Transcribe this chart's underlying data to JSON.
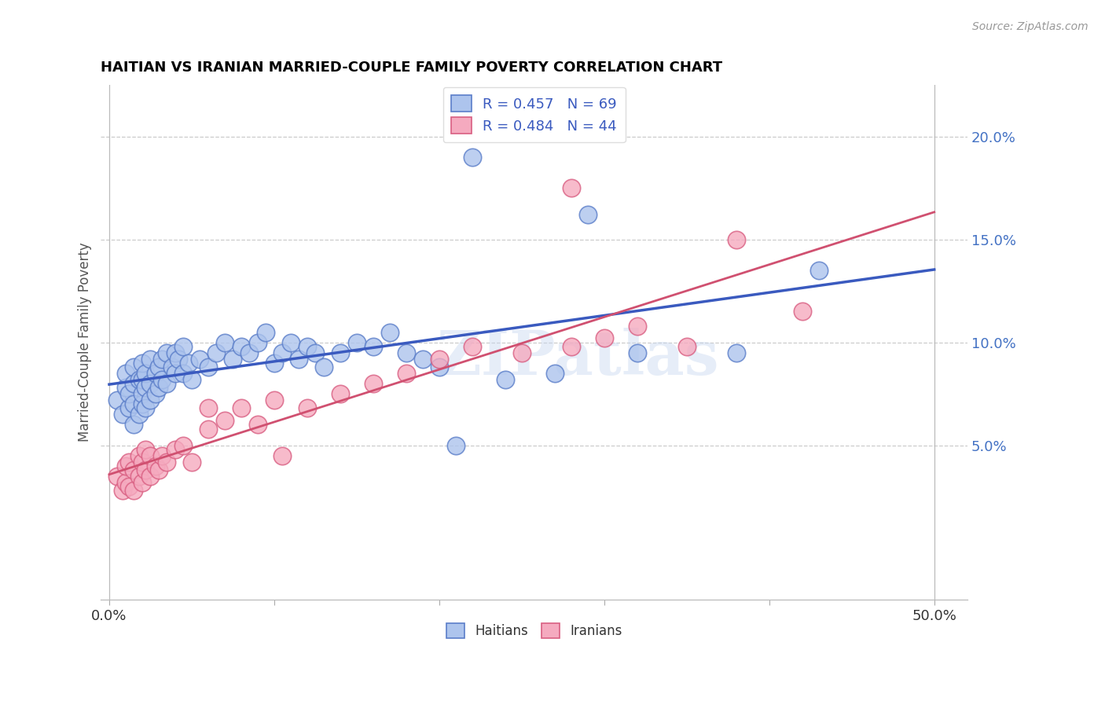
{
  "title": "HAITIAN VS IRANIAN MARRIED-COUPLE FAMILY POVERTY CORRELATION CHART",
  "source": "Source: ZipAtlas.com",
  "ylabel": "Married-Couple Family Poverty",
  "right_yticks": [
    "20.0%",
    "15.0%",
    "10.0%",
    "5.0%"
  ],
  "right_ytick_vals": [
    0.2,
    0.15,
    0.1,
    0.05
  ],
  "xlim": [
    -0.005,
    0.52
  ],
  "ylim": [
    -0.025,
    0.225
  ],
  "haitian_color": "#adc4ed",
  "iranian_color": "#f5aabf",
  "haitian_edge": "#5b7ec9",
  "iranian_edge": "#d95f82",
  "regression_haitian_color": "#3a5abf",
  "regression_iranian_color": "#d05070",
  "watermark": "ZIPatlas",
  "legend_haitian": "R = 0.457   N = 69",
  "legend_iranian": "R = 0.484   N = 44",
  "legend_color": "#3a5abf",
  "haitian_x": [
    0.005,
    0.008,
    0.01,
    0.01,
    0.012,
    0.012,
    0.015,
    0.015,
    0.015,
    0.015,
    0.018,
    0.018,
    0.02,
    0.02,
    0.02,
    0.02,
    0.022,
    0.022,
    0.022,
    0.025,
    0.025,
    0.025,
    0.028,
    0.028,
    0.03,
    0.03,
    0.032,
    0.032,
    0.035,
    0.035,
    0.038,
    0.04,
    0.04,
    0.042,
    0.045,
    0.045,
    0.048,
    0.05,
    0.055,
    0.06,
    0.065,
    0.07,
    0.075,
    0.08,
    0.085,
    0.09,
    0.095,
    0.1,
    0.105,
    0.11,
    0.115,
    0.12,
    0.125,
    0.13,
    0.14,
    0.15,
    0.16,
    0.17,
    0.18,
    0.19,
    0.2,
    0.21,
    0.22,
    0.24,
    0.27,
    0.29,
    0.32,
    0.38,
    0.43
  ],
  "haitian_y": [
    0.072,
    0.065,
    0.078,
    0.085,
    0.068,
    0.075,
    0.06,
    0.07,
    0.08,
    0.088,
    0.065,
    0.082,
    0.07,
    0.075,
    0.082,
    0.09,
    0.068,
    0.078,
    0.085,
    0.072,
    0.08,
    0.092,
    0.075,
    0.085,
    0.078,
    0.088,
    0.082,
    0.092,
    0.08,
    0.095,
    0.088,
    0.085,
    0.095,
    0.092,
    0.085,
    0.098,
    0.09,
    0.082,
    0.092,
    0.088,
    0.095,
    0.1,
    0.092,
    0.098,
    0.095,
    0.1,
    0.105,
    0.09,
    0.095,
    0.1,
    0.092,
    0.098,
    0.095,
    0.088,
    0.095,
    0.1,
    0.098,
    0.105,
    0.095,
    0.092,
    0.088,
    0.05,
    0.19,
    0.082,
    0.085,
    0.162,
    0.095,
    0.095,
    0.135
  ],
  "iranian_x": [
    0.005,
    0.008,
    0.01,
    0.01,
    0.012,
    0.012,
    0.015,
    0.015,
    0.018,
    0.018,
    0.02,
    0.02,
    0.022,
    0.022,
    0.025,
    0.025,
    0.028,
    0.03,
    0.032,
    0.035,
    0.04,
    0.045,
    0.05,
    0.06,
    0.07,
    0.08,
    0.09,
    0.1,
    0.12,
    0.14,
    0.16,
    0.18,
    0.2,
    0.22,
    0.25,
    0.28,
    0.3,
    0.32,
    0.35,
    0.38,
    0.28,
    0.06,
    0.105,
    0.42
  ],
  "iranian_y": [
    0.035,
    0.028,
    0.032,
    0.04,
    0.03,
    0.042,
    0.028,
    0.038,
    0.035,
    0.045,
    0.032,
    0.042,
    0.038,
    0.048,
    0.035,
    0.045,
    0.04,
    0.038,
    0.045,
    0.042,
    0.048,
    0.05,
    0.042,
    0.058,
    0.062,
    0.068,
    0.06,
    0.072,
    0.068,
    0.075,
    0.08,
    0.085,
    0.092,
    0.098,
    0.095,
    0.098,
    0.102,
    0.108,
    0.098,
    0.15,
    0.175,
    0.068,
    0.045,
    0.115
  ],
  "xtick_positions": [
    0.0,
    0.1,
    0.2,
    0.3,
    0.4,
    0.5
  ],
  "xtick_labels_show_only_ends": true,
  "grid_yticks": [
    0.05,
    0.1,
    0.15,
    0.2
  ]
}
